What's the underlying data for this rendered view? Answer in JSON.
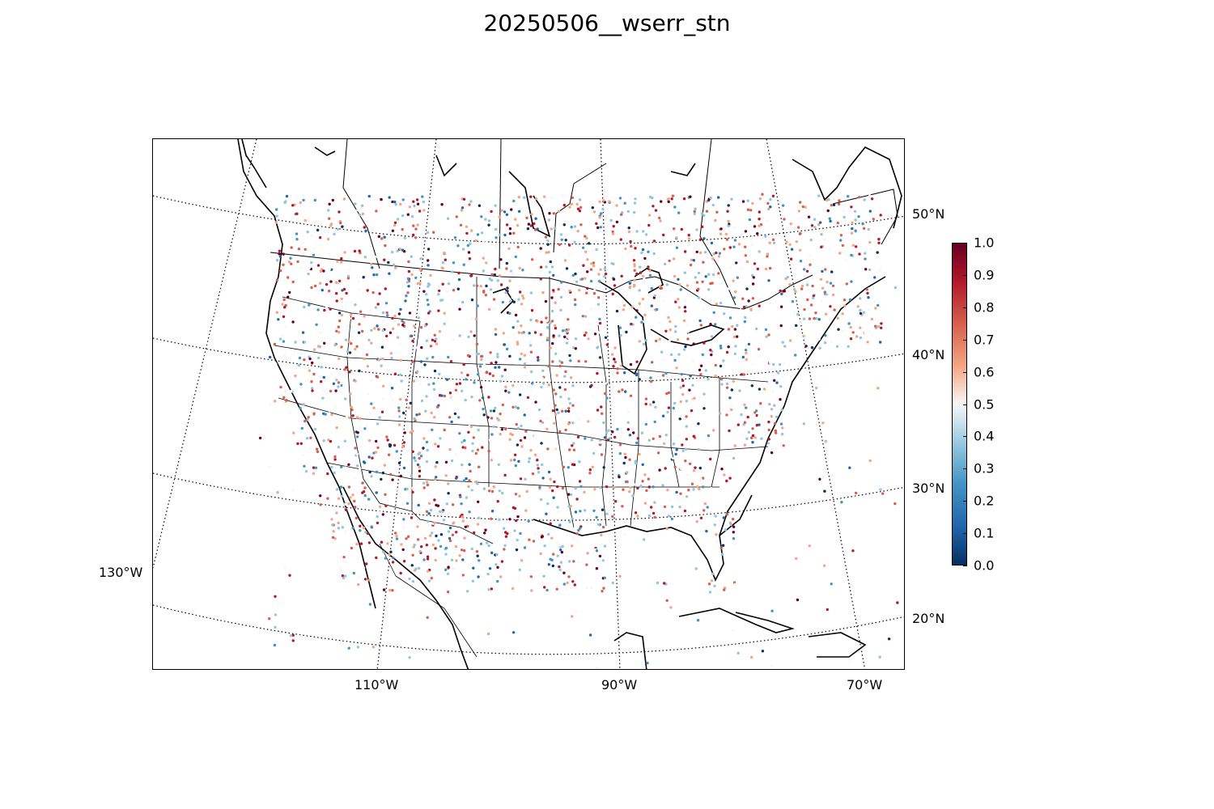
{
  "title": "20250506__wserr_stn",
  "lat_labels": [
    "50°N",
    "40°N",
    "30°N",
    "20°N"
  ],
  "lon_labels": [
    "110°W",
    "90°W",
    "70°W",
    "130°W"
  ],
  "colorbar": {
    "ticks": [
      "0.0",
      "0.1",
      "0.2",
      "0.3",
      "0.4",
      "0.5",
      "0.6",
      "0.7",
      "0.8",
      "0.9",
      "1.0"
    ],
    "min": 0.0,
    "max": 1.0,
    "colormap": "RdBu_r",
    "colors": [
      "#053061",
      "#2166ac",
      "#4393c3",
      "#92c5de",
      "#f7f7f7",
      "#f4a582",
      "#d6604d",
      "#b2182b",
      "#67001f"
    ]
  },
  "map": {
    "projection": "lambert-conformal",
    "region": "CONUS",
    "graticule": "dotted",
    "station_markers": "colored-dots"
  }
}
